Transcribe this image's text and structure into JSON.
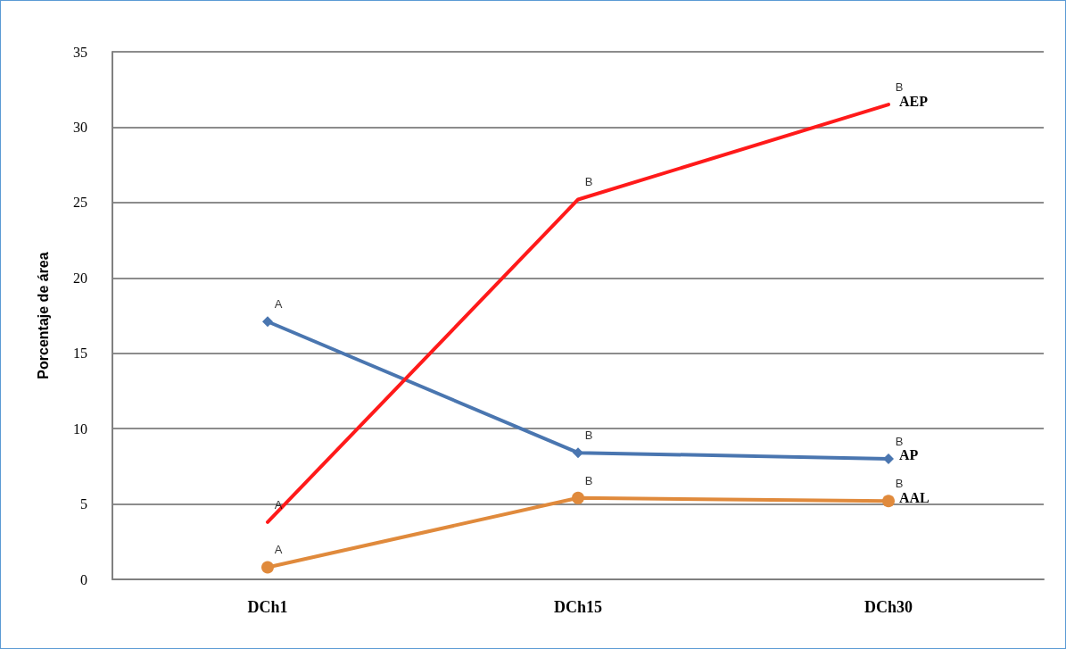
{
  "chart_data": {
    "type": "line",
    "ylabel": "Porcentaje de área",
    "categories": [
      "DCh1",
      "DCh15",
      "DCh30"
    ],
    "series": [
      {
        "name": "AP",
        "color": "#4a76b0",
        "values": [
          17.1,
          8.4,
          8.0
        ],
        "marker": "diamond"
      },
      {
        "name": "AEP",
        "color": "#ff1a1a",
        "values": [
          3.8,
          25.2,
          31.5
        ],
        "marker": "none"
      },
      {
        "name": "AAL",
        "color": "#e08a3c",
        "values": [
          0.8,
          5.4,
          5.2
        ],
        "marker": "circle"
      }
    ],
    "ylim": [
      0,
      35
    ],
    "yticks": [
      0,
      5,
      10,
      15,
      20,
      25,
      30,
      35
    ],
    "grid": "y",
    "legend": false,
    "line_style": "solid",
    "annotations": [
      {
        "text": "A",
        "x": "DCh1",
        "y": 17.1
      },
      {
        "text": "B",
        "x": "DCh15",
        "y": 8.4
      },
      {
        "text": "B",
        "x": "DCh30",
        "y": 8.0
      },
      {
        "text": "A",
        "x": "DCh1",
        "y": 3.8
      },
      {
        "text": "B",
        "x": "DCh15",
        "y": 25.2
      },
      {
        "text": "B",
        "x": "DCh30",
        "y": 31.5
      },
      {
        "text": "A",
        "x": "DCh1",
        "y": 0.8
      },
      {
        "text": "B",
        "x": "DCh15",
        "y": 5.4
      },
      {
        "text": "B",
        "x": "DCh30",
        "y": 5.2
      }
    ]
  }
}
